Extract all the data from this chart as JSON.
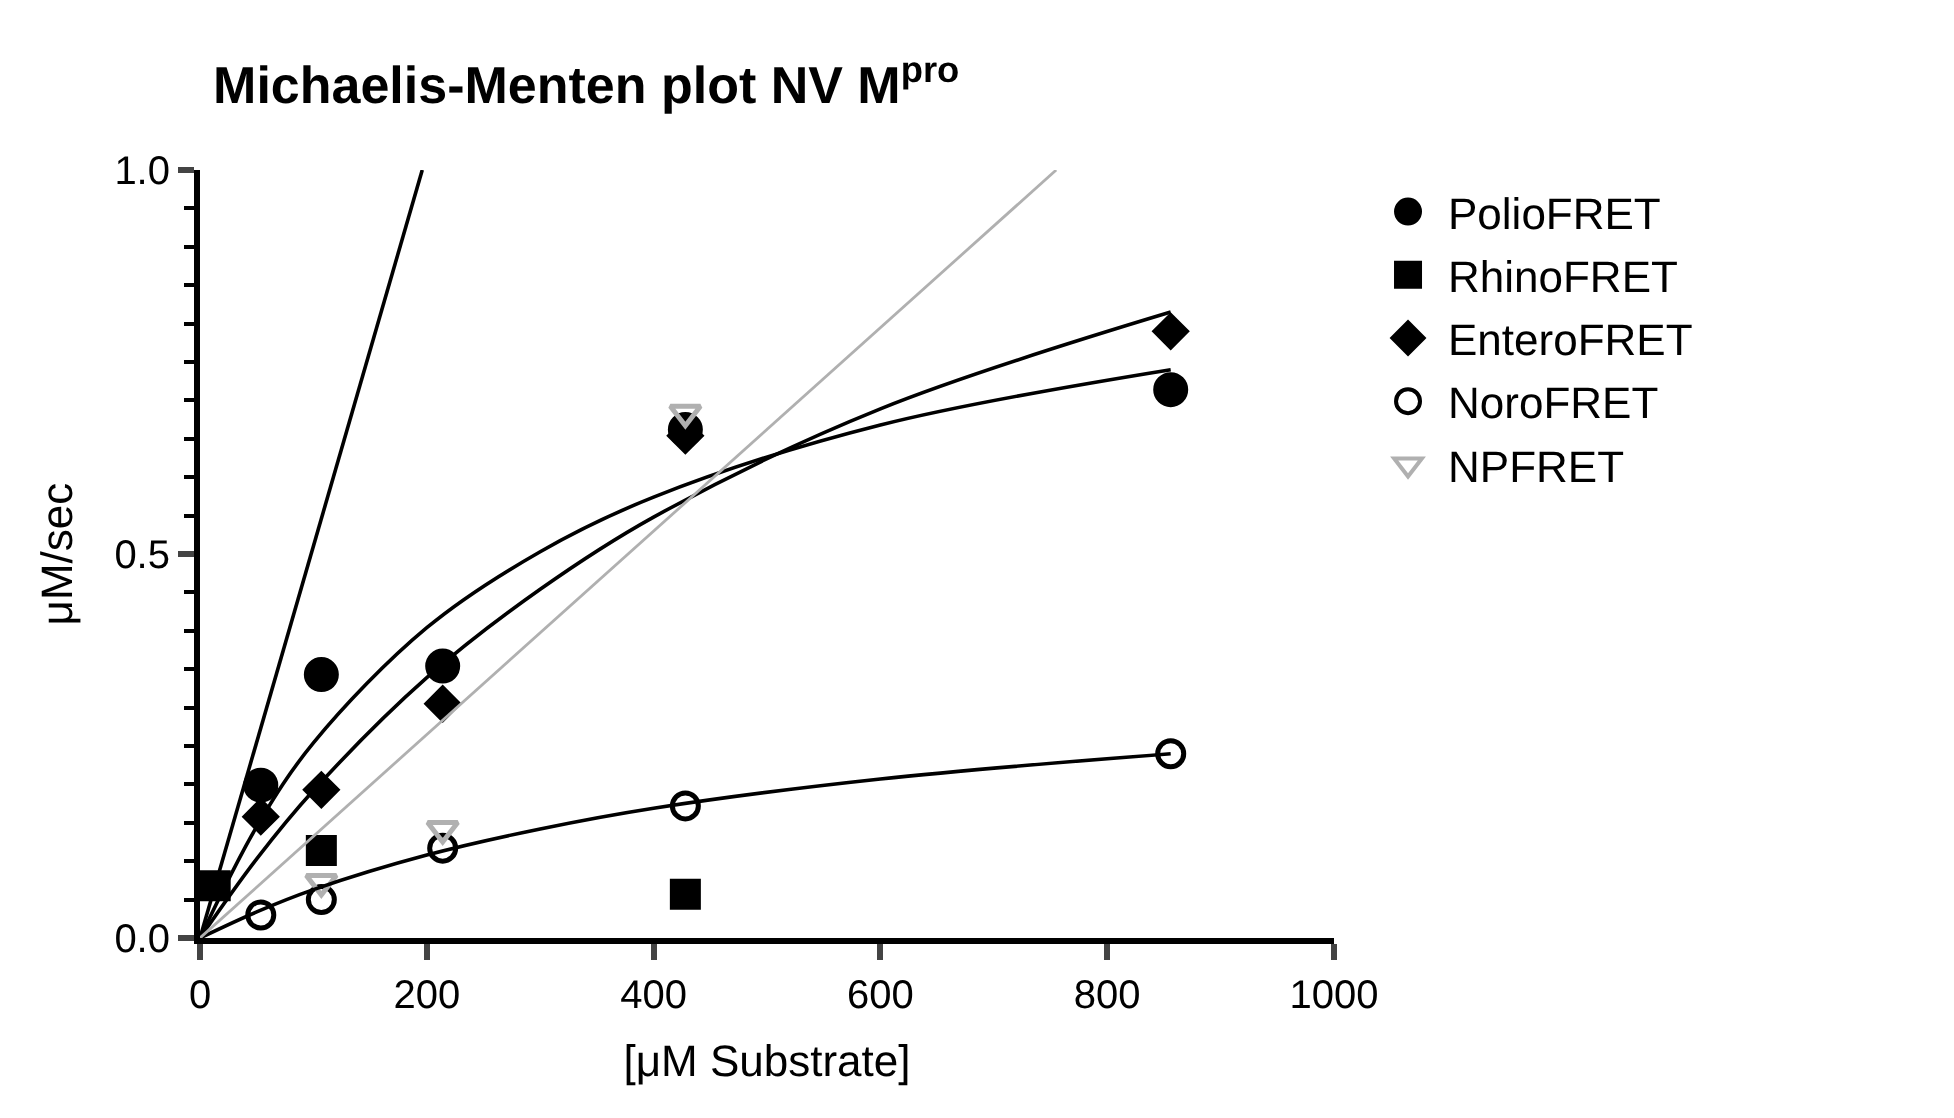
{
  "chart_data": {
    "type": "scatter",
    "title": "Michaelis-Menten plot NV M$^{pro}$",
    "xlabel": "[μM Substrate]",
    "ylabel": "μM/sec",
    "x": [
      13.4,
      53.6,
      107,
      214,
      428,
      856
    ],
    "xlim": [
      0,
      1000
    ],
    "xticks": [
      0,
      200,
      400,
      600,
      800,
      1000
    ],
    "ylim": [
      0,
      1.0
    ],
    "yticks": [
      {
        "value": 0,
        "label": "0.0"
      },
      0.5,
      {
        "value": 1.0,
        "label": "1.0"
      }
    ],
    "legend": "top right",
    "series": [
      {
        "name": "PolioFRET",
        "color": "#000000",
        "marker": "circle",
        "values": [
          null,
          0.199,
          0.343,
          0.354,
          0.662,
          0.714
        ]
      },
      {
        "name": "RhinoFRET",
        "color": "#000000",
        "marker": "square",
        "values": [
          0.068,
          null,
          0.114,
          null,
          0.057,
          null
        ]
      },
      {
        "name": "EnteroFRET",
        "color": "#000000",
        "marker": "diamond",
        "values": [
          null,
          0.158,
          0.193,
          0.305,
          0.654,
          0.79
        ]
      },
      {
        "name": "NoroFRET",
        "color": "#000000",
        "marker": "circle-open",
        "values": [
          null,
          0.03,
          0.05,
          0.117,
          0.172,
          0.24
        ]
      },
      {
        "name": "NPFRET",
        "color": "#b0b0b0",
        "marker": "triangle-down-open",
        "values": [
          null,
          null,
          0.073,
          0.142,
          0.684,
          null
        ]
      },
      {
        "type": "line",
        "color": "#000000",
        "x": [
          0,
          50,
          100,
          200,
          300,
          400,
          600,
          856
        ],
        "values": [
          0,
          0.145,
          0.254,
          0.404,
          0.503,
          0.574,
          0.668,
          0.74
        ]
      },
      {
        "type": "line",
        "color": "#000000",
        "x": [
          0,
          196
        ],
        "values": [
          0,
          1.0
        ]
      },
      {
        "type": "line",
        "color": "#000000",
        "x": [
          0,
          50,
          100,
          200,
          300,
          400,
          600,
          856
        ],
        "values": [
          0,
          0.103,
          0.192,
          0.339,
          0.454,
          0.548,
          0.689,
          0.815
        ]
      },
      {
        "type": "line",
        "color": "#000000",
        "x": [
          0,
          50,
          100,
          200,
          300,
          400,
          600,
          856
        ],
        "values": [
          0,
          0.034,
          0.063,
          0.108,
          0.142,
          0.169,
          0.207,
          0.24
        ]
      },
      {
        "type": "line",
        "color": "#b0b0b0",
        "x": [
          0,
          755
        ],
        "values": [
          0,
          1.0
        ]
      }
    ]
  }
}
